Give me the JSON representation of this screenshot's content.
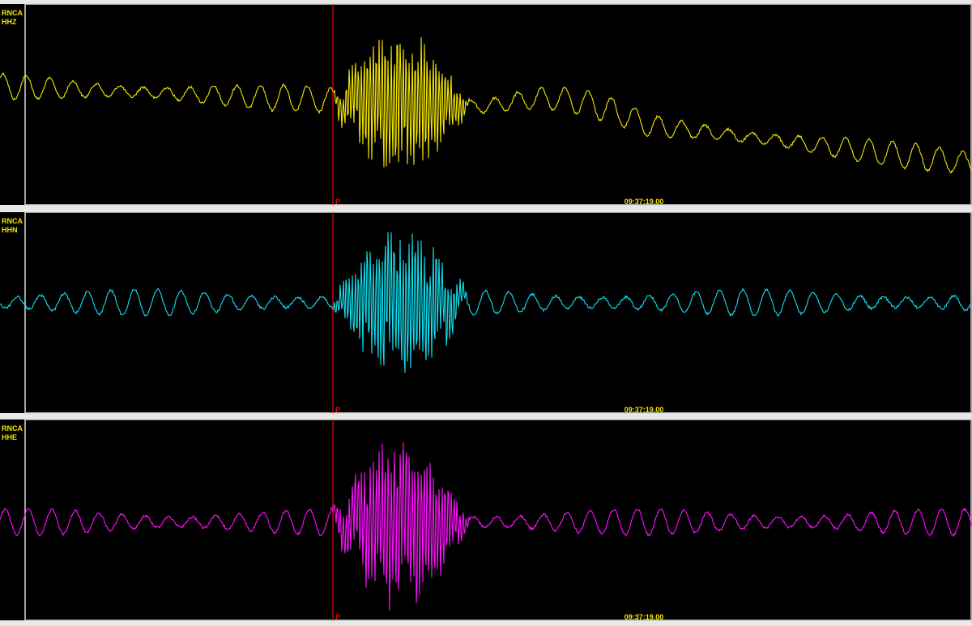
{
  "panels": [
    {
      "station": "RNCA",
      "channel": "HHZ",
      "pick": "P",
      "time": "09:37:19.00"
    },
    {
      "station": "RNCA",
      "channel": "HHN",
      "pick": "P",
      "time": "09:37:19.00"
    },
    {
      "station": "RNCA",
      "channel": "HHE",
      "pick": "P",
      "time": "09:37:19.00"
    }
  ]
}
